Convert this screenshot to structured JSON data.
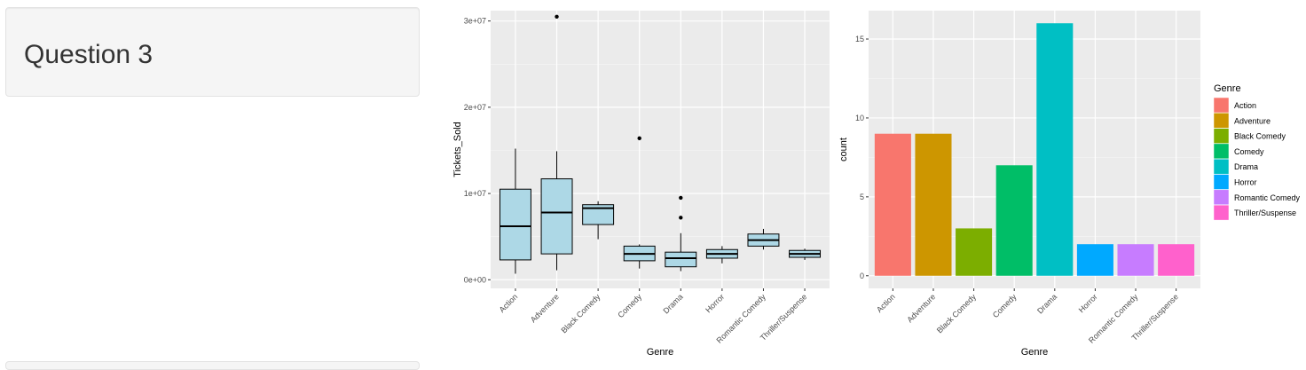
{
  "sidebar": {
    "title": "Question 3"
  },
  "chart_data": [
    {
      "type": "boxplot",
      "title": "",
      "xlabel": "Genre",
      "ylabel": "Tickets_Sold",
      "ylim": [
        -1000000,
        31200000
      ],
      "yticks": [
        0,
        10000000,
        20000000,
        30000000
      ],
      "ytick_labels": [
        "0e+00",
        "1e+07",
        "2e+07",
        "3e+07"
      ],
      "categories": [
        "Action",
        "Adventure",
        "Black Comedy",
        "Comedy",
        "Drama",
        "Horror",
        "Romantic Comedy",
        "Thriller/Suspense"
      ],
      "boxes": [
        {
          "min": 700000,
          "q1": 2300000,
          "median": 6200000,
          "q3": 10500000,
          "max": 15200000,
          "outliers": []
        },
        {
          "min": 1100000,
          "q1": 3000000,
          "median": 7800000,
          "q3": 11700000,
          "max": 14900000,
          "outliers": [
            30500000
          ]
        },
        {
          "min": 4700000,
          "q1": 6400000,
          "median": 8300000,
          "q3": 8700000,
          "max": 9100000,
          "outliers": []
        },
        {
          "min": 1300000,
          "q1": 2200000,
          "median": 3000000,
          "q3": 3900000,
          "max": 4100000,
          "outliers": [
            16400000
          ]
        },
        {
          "min": 1000000,
          "q1": 1500000,
          "median": 2500000,
          "q3": 3200000,
          "max": 5400000,
          "outliers": [
            7200000,
            9500000
          ]
        },
        {
          "min": 1900000,
          "q1": 2500000,
          "median": 3000000,
          "q3": 3500000,
          "max": 3900000,
          "outliers": []
        },
        {
          "min": 3500000,
          "q1": 3900000,
          "median": 4600000,
          "q3": 5300000,
          "max": 5900000,
          "outliers": []
        },
        {
          "min": 2300000,
          "q1": 2600000,
          "median": 3000000,
          "q3": 3400000,
          "max": 3600000,
          "outliers": []
        }
      ],
      "fill": "#add8e6",
      "background": "#ebebeb",
      "grid": true
    },
    {
      "type": "bar",
      "title": "",
      "xlabel": "Genre",
      "ylabel": "count",
      "ylim": [
        -0.8,
        16.8
      ],
      "yticks": [
        0,
        5,
        10,
        15
      ],
      "ytick_labels": [
        "0",
        "5",
        "10",
        "15"
      ],
      "categories": [
        "Action",
        "Adventure",
        "Black Comedy",
        "Comedy",
        "Drama",
        "Horror",
        "Romantic Comedy",
        "Thriller/Suspense"
      ],
      "values": [
        9,
        9,
        3,
        7,
        16,
        2,
        2,
        2
      ],
      "colors": [
        "#F8766D",
        "#CD9600",
        "#7CAE00",
        "#00BE67",
        "#00BFC4",
        "#00A9FF",
        "#C77CFF",
        "#FF61CC"
      ],
      "legend": {
        "title": "Genre",
        "position": "right",
        "items": [
          "Action",
          "Adventure",
          "Black Comedy",
          "Comedy",
          "Drama",
          "Horror",
          "Romantic Comedy",
          "Thriller/Suspense"
        ]
      },
      "background": "#ebebeb",
      "grid": true
    }
  ]
}
